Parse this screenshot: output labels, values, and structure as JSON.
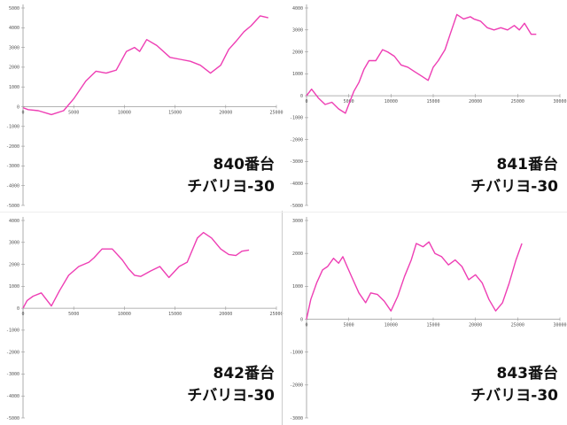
{
  "style": {
    "line_color": "#ee3eb4",
    "axis_color": "#999999",
    "grid": false
  },
  "chart_data": [
    {
      "type": "line",
      "annotation": {
        "machine": "840番台",
        "model": "チバリヨ-30"
      },
      "xlim": [
        0,
        25000
      ],
      "ylim": [
        -5000,
        5000
      ],
      "xticks": [
        0,
        5000,
        10000,
        15000,
        20000,
        25000
      ],
      "xtick_labels": [
        "0",
        "5000",
        "10000",
        "15000",
        "20000",
        "25000"
      ],
      "yticks": [
        5000,
        4000,
        3000,
        2000,
        1000,
        0,
        -1000,
        -2000,
        -3000,
        -4000,
        -5000
      ],
      "ytick_labels": [
        "5000",
        "4000",
        "3000",
        "2000",
        "1000",
        "0",
        "-1000",
        "-2000",
        "-3000",
        "-4000",
        "-5000"
      ],
      "series": [
        {
          "x": [
            0,
            500,
            1500,
            2800,
            4000,
            5000,
            6200,
            7200,
            8200,
            9200,
            10200,
            11000,
            11500,
            12200,
            13200,
            14500,
            15500,
            16500,
            17500,
            18500,
            19500,
            20300,
            21000,
            21800,
            22500,
            23400,
            24200
          ],
          "y": [
            -50,
            -150,
            -200,
            -400,
            -200,
            400,
            1300,
            1800,
            1700,
            1850,
            2800,
            3000,
            2800,
            3400,
            3100,
            2500,
            2400,
            2300,
            2100,
            1700,
            2100,
            2900,
            3300,
            3800,
            4100,
            4600,
            4500
          ]
        }
      ]
    },
    {
      "type": "line",
      "annotation": {
        "machine": "841番台",
        "model": "チバリヨ-30"
      },
      "xlim": [
        0,
        30000
      ],
      "ylim": [
        -5000,
        4000
      ],
      "xticks": [
        0,
        5000,
        10000,
        15000,
        20000,
        25000,
        30000
      ],
      "xtick_labels": [
        "0",
        "5000",
        "10000",
        "15000",
        "20000",
        "25000",
        "30000"
      ],
      "yticks": [
        4000,
        3000,
        2000,
        1000,
        0,
        -1000,
        -2000,
        -3000,
        -4000,
        -5000
      ],
      "ytick_labels": [
        "4000",
        "3000",
        "2000",
        "1000",
        "0",
        "-1000",
        "-2000",
        "-3000",
        "-4000",
        "-5000"
      ],
      "series": [
        {
          "x": [
            0,
            600,
            1400,
            2200,
            3000,
            3800,
            4600,
            5100,
            5600,
            6200,
            6800,
            7400,
            8200,
            9000,
            9600,
            10400,
            11200,
            12000,
            12800,
            13600,
            14400,
            15000,
            15600,
            16400,
            17000,
            17800,
            18600,
            19400,
            19800,
            20600,
            21400,
            22200,
            23000,
            23800,
            24600,
            25200,
            25800,
            26600,
            27200
          ],
          "y": [
            0,
            300,
            -100,
            -400,
            -300,
            -600,
            -800,
            -300,
            200,
            600,
            1200,
            1600,
            1600,
            2100,
            2000,
            1800,
            1400,
            1300,
            1100,
            900,
            700,
            1300,
            1600,
            2100,
            2800,
            3700,
            3500,
            3600,
            3500,
            3400,
            3100,
            3000,
            3100,
            3000,
            3200,
            3000,
            3300,
            2800,
            2800
          ]
        }
      ]
    },
    {
      "type": "line",
      "annotation": {
        "machine": "842番台",
        "model": "チバリヨ-30"
      },
      "xlim": [
        0,
        25000
      ],
      "ylim": [
        -5000,
        4000
      ],
      "xticks": [
        0,
        5000,
        10000,
        15000,
        20000,
        25000
      ],
      "xtick_labels": [
        "0",
        "5000",
        "10000",
        "15000",
        "20000",
        "25000"
      ],
      "yticks": [
        4000,
        3000,
        2000,
        1000,
        0,
        -1000,
        -2000,
        -3000,
        -4000,
        -5000
      ],
      "ytick_labels": [
        "4000",
        "3000",
        "2000",
        "1000",
        "0",
        "-1000",
        "-2000",
        "-3000",
        "-4000",
        "-5000"
      ],
      "series": [
        {
          "x": [
            0,
            400,
            1000,
            1800,
            2800,
            3600,
            4500,
            5500,
            6500,
            7000,
            7800,
            8800,
            9800,
            10400,
            11000,
            11600,
            12600,
            13500,
            14400,
            15400,
            16200,
            17200,
            17800,
            18600,
            19500,
            20300,
            21000,
            21600,
            22300
          ],
          "y": [
            0,
            350,
            550,
            700,
            100,
            800,
            1500,
            1900,
            2100,
            2300,
            2700,
            2700,
            2200,
            1800,
            1500,
            1450,
            1700,
            1900,
            1400,
            1900,
            2100,
            3200,
            3450,
            3200,
            2700,
            2450,
            2400,
            2600,
            2650
          ]
        }
      ]
    },
    {
      "type": "line",
      "annotation": {
        "machine": "843番台",
        "model": "チバリヨ-30"
      },
      "xlim": [
        0,
        30000
      ],
      "ylim": [
        -3000,
        3000
      ],
      "xticks": [
        0,
        5000,
        10000,
        15000,
        20000,
        25000,
        30000
      ],
      "xtick_labels": [
        "0",
        "5000",
        "10000",
        "15000",
        "20000",
        "25000",
        "30000"
      ],
      "yticks": [
        3000,
        2000,
        1000,
        0,
        -1000,
        -2000,
        -3000
      ],
      "ytick_labels": [
        "3000",
        "2000",
        "1000",
        "0",
        "-1000",
        "-2000",
        "-3000"
      ],
      "series": [
        {
          "x": [
            0,
            500,
            1200,
            1900,
            2500,
            3200,
            3800,
            4300,
            4800,
            5500,
            6200,
            7000,
            7600,
            8400,
            9200,
            10000,
            10800,
            11600,
            12400,
            13000,
            13800,
            14500,
            15200,
            16000,
            16800,
            17600,
            18400,
            19200,
            20000,
            20800,
            21600,
            22400,
            23200,
            24000,
            24800,
            25500
          ],
          "y": [
            0,
            600,
            1100,
            1500,
            1600,
            1850,
            1700,
            1900,
            1600,
            1200,
            800,
            500,
            800,
            750,
            550,
            250,
            700,
            1300,
            1800,
            2300,
            2200,
            2350,
            2000,
            1900,
            1650,
            1800,
            1600,
            1200,
            1350,
            1100,
            600,
            250,
            500,
            1100,
            1800,
            2300
          ]
        }
      ]
    }
  ]
}
